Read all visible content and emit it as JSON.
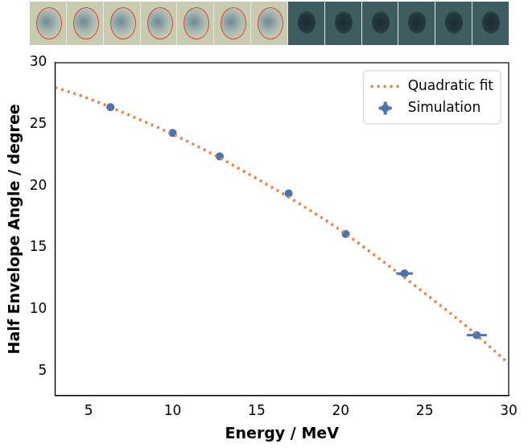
{
  "chart_data": {
    "type": "scatter",
    "x_label": "Energy / MeV",
    "y_label": "Half Envelope Angle / degree",
    "xlim": [
      3,
      30
    ],
    "ylim": [
      3,
      30
    ],
    "xticks": [
      5,
      10,
      15,
      20,
      25,
      30
    ],
    "yticks": [
      5,
      10,
      15,
      20,
      25,
      30
    ],
    "grid": false,
    "legend": "upper right",
    "series": [
      {
        "name": "Quadratic fit",
        "type": "line",
        "line_style": "dotted",
        "color": "#dd8452",
        "x": [
          3,
          5,
          7.5,
          10,
          12.5,
          15,
          17.5,
          20,
          22.5,
          25,
          27.5,
          30
        ],
        "values": [
          28.0,
          27.1,
          25.7,
          24.2,
          22.5,
          20.6,
          18.6,
          16.4,
          13.9,
          11.3,
          8.6,
          5.6
        ]
      },
      {
        "name": "Simulation",
        "type": "scatter",
        "marker": "circle",
        "color": "#4c72b0",
        "x": [
          6.3,
          10.0,
          12.8,
          16.9,
          20.3,
          23.8,
          28.1
        ],
        "values": [
          26.4,
          24.3,
          22.4,
          19.4,
          16.1,
          12.9,
          7.9
        ],
        "x_errors": [
          0.2,
          0.2,
          0.2,
          0.2,
          0.2,
          0.5,
          0.6
        ]
      }
    ]
  }
}
